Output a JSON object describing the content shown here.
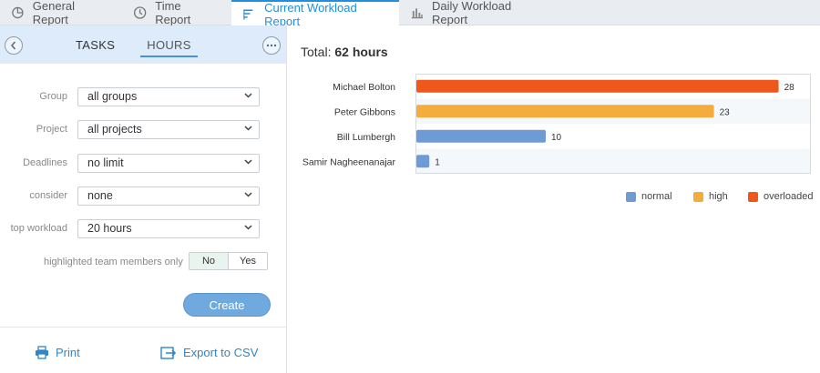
{
  "tabs": [
    {
      "label": "General Report",
      "icon": "pie-chart-icon"
    },
    {
      "label": "Time Report",
      "icon": "clock-icon"
    },
    {
      "label": "Current Workload Report",
      "icon": "bar-list-icon",
      "active": true
    },
    {
      "label": "Daily Workload Report",
      "icon": "column-chart-icon"
    }
  ],
  "panel": {
    "tabs": {
      "tasks": "TASKS",
      "hours": "HOURS"
    },
    "filters": {
      "group": {
        "label": "Group",
        "value": "all groups"
      },
      "project": {
        "label": "Project",
        "value": "all projects"
      },
      "deadlines": {
        "label": "Deadlines",
        "value": "no limit"
      },
      "consider": {
        "label": "consider",
        "value": "none"
      },
      "top_workload": {
        "label": "top workload",
        "value": "20 hours"
      }
    },
    "highlight": {
      "label": "highlighted team members only",
      "no": "No",
      "yes": "Yes",
      "selected": "No"
    },
    "create_label": "Create",
    "print_label": "Print",
    "export_label": "Export to CSV"
  },
  "summary": {
    "label": "Total:",
    "value": "62 hours"
  },
  "colors": {
    "normal": "#6f9bd4",
    "high": "#f4ad3d",
    "overloaded": "#f0581b",
    "accent": "#1f8fe0"
  },
  "chart_data": {
    "type": "bar",
    "orientation": "horizontal",
    "categories": [
      "Michael Bolton",
      "Peter Gibbons",
      "Bill Lumbergh",
      "Samir Nagheenanajar"
    ],
    "values": [
      28,
      23,
      10,
      1
    ],
    "levels": [
      "overloaded",
      "high",
      "normal",
      "normal"
    ],
    "data_labels": [
      "28",
      "23",
      "10",
      "1"
    ],
    "legend": [
      {
        "key": "normal",
        "label": "normal"
      },
      {
        "key": "high",
        "label": "high"
      },
      {
        "key": "overloaded",
        "label": "overloaded"
      }
    ],
    "legend_position": "bottom-right",
    "grid": false
  }
}
